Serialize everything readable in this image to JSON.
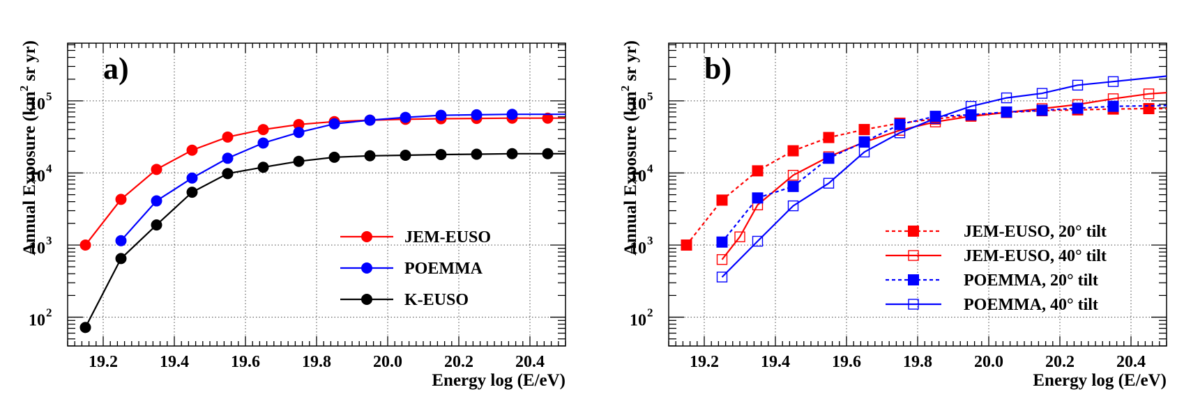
{
  "chart_data": [
    {
      "id": "a",
      "type": "line",
      "panel_label": "a)",
      "xlabel": "Energy log (E/eV)",
      "ylabel_main": "Annual Exposure (km",
      "ylabel_sup": "2",
      "ylabel_tail": " sr yr)",
      "xlim": [
        19.1,
        20.5
      ],
      "ylim_log10": [
        1.6,
        5.8
      ],
      "yscale": "log",
      "grid": true,
      "legend_position": "lower-right",
      "xticks": [
        19.2,
        19.4,
        19.6,
        19.8,
        20.0,
        20.2,
        20.4
      ],
      "xtick_labels": [
        "19.2",
        "19.4",
        "19.6",
        "19.8",
        "20.0",
        "20.2",
        "20.4"
      ],
      "yticks": [
        {
          "base": "10",
          "exp": "2",
          "log10": 2
        },
        {
          "base": "10",
          "exp": "3",
          "log10": 3
        },
        {
          "base": "10",
          "exp": "4",
          "log10": 4
        },
        {
          "base": "10",
          "exp": "5",
          "log10": 5
        }
      ],
      "series": [
        {
          "name": "JEM-EUSO",
          "color": "#ff0000",
          "marker": "circle",
          "dash": "solid",
          "points": [
            [
              19.15,
              1000
            ],
            [
              19.25,
              4300
            ],
            [
              19.35,
              11200
            ],
            [
              19.45,
              20700
            ],
            [
              19.55,
              31500
            ],
            [
              19.65,
              40000
            ],
            [
              19.75,
              47000
            ],
            [
              19.85,
              51500
            ],
            [
              19.95,
              54000
            ],
            [
              20.05,
              55500
            ],
            [
              20.15,
              56500
            ],
            [
              20.25,
              57000
            ],
            [
              20.35,
              57500
            ],
            [
              20.45,
              57500
            ]
          ],
          "line_to": [
            20.5,
            57500
          ]
        },
        {
          "name": "POEMMA",
          "color": "#0000ff",
          "marker": "circle",
          "dash": "solid",
          "points": [
            [
              19.25,
              1150
            ],
            [
              19.35,
              4100
            ],
            [
              19.45,
              8500
            ],
            [
              19.55,
              16000
            ],
            [
              19.65,
              26000
            ],
            [
              19.75,
              36500
            ],
            [
              19.85,
              48000
            ],
            [
              19.95,
              54000
            ],
            [
              20.05,
              59000
            ],
            [
              20.15,
              63000
            ],
            [
              20.25,
              64000
            ],
            [
              20.35,
              65000
            ]
          ],
          "line_to": [
            20.5,
            65000
          ]
        },
        {
          "name": "K-EUSO",
          "color": "#000000",
          "marker": "circle",
          "dash": "solid",
          "points": [
            [
              19.15,
              72
            ],
            [
              19.25,
              650
            ],
            [
              19.35,
              1900
            ],
            [
              19.45,
              5400
            ],
            [
              19.55,
              9800
            ],
            [
              19.65,
              12000
            ],
            [
              19.75,
              14500
            ],
            [
              19.85,
              16500
            ],
            [
              19.95,
              17300
            ],
            [
              20.05,
              17600
            ],
            [
              20.15,
              18000
            ],
            [
              20.25,
              18200
            ],
            [
              20.35,
              18500
            ],
            [
              20.45,
              18500
            ]
          ],
          "line_to": [
            20.5,
            18500
          ]
        }
      ]
    },
    {
      "id": "b",
      "type": "line",
      "panel_label": "b)",
      "xlabel": "Energy log (E/eV)",
      "ylabel_main": "Annual Exposure (km",
      "ylabel_sup": "2",
      "ylabel_tail": " sr yr)",
      "xlim": [
        19.1,
        20.5
      ],
      "ylim_log10": [
        1.6,
        5.8
      ],
      "yscale": "log",
      "grid": true,
      "legend_position": "lower-right",
      "xticks": [
        19.2,
        19.4,
        19.6,
        19.8,
        20.0,
        20.2,
        20.4
      ],
      "xtick_labels": [
        "19.2",
        "19.4",
        "19.6",
        "19.8",
        "20.0",
        "20.2",
        "20.4"
      ],
      "yticks": [
        {
          "base": "10",
          "exp": "2",
          "log10": 2
        },
        {
          "base": "10",
          "exp": "3",
          "log10": 3
        },
        {
          "base": "10",
          "exp": "4",
          "log10": 4
        },
        {
          "base": "10",
          "exp": "5",
          "log10": 5
        }
      ],
      "series": [
        {
          "name": "JEM-EUSO, 20° tilt",
          "color": "#ff0000",
          "marker": "square-filled",
          "dash": "dotted",
          "points": [
            [
              19.15,
              1000
            ],
            [
              19.25,
              4200
            ],
            [
              19.35,
              10700
            ],
            [
              19.45,
              20300
            ],
            [
              19.55,
              31000
            ],
            [
              19.65,
              40000
            ],
            [
              19.75,
              49000
            ],
            [
              19.85,
              56000
            ],
            [
              19.95,
              63000
            ],
            [
              20.05,
              69000
            ],
            [
              20.15,
              73000
            ],
            [
              20.25,
              75000
            ],
            [
              20.35,
              77000
            ],
            [
              20.45,
              78000
            ]
          ],
          "line_to": [
            20.5,
            78000
          ]
        },
        {
          "name": "JEM-EUSO, 40° tilt",
          "color": "#ff0000",
          "marker": "square-open",
          "dash": "solid",
          "points": [
            [
              19.25,
              630
            ],
            [
              19.3,
              1300
            ],
            [
              19.35,
              3600
            ],
            [
              19.45,
              9300
            ],
            [
              19.55,
              16800
            ],
            [
              19.65,
              26800
            ],
            [
              19.75,
              39000
            ],
            [
              19.85,
              51000
            ],
            [
              19.95,
              61000
            ],
            [
              20.05,
              69000
            ],
            [
              20.15,
              78000
            ],
            [
              20.25,
              89000
            ],
            [
              20.35,
              107000
            ],
            [
              20.45,
              125000
            ]
          ],
          "line_to": [
            20.5,
            130000
          ]
        },
        {
          "name": "POEMMA, 20° tilt",
          "color": "#0000ff",
          "marker": "square-filled",
          "dash": "dotted",
          "points": [
            [
              19.25,
              1100
            ],
            [
              19.35,
              4500
            ],
            [
              19.45,
              6500
            ],
            [
              19.55,
              16000
            ],
            [
              19.65,
              27000
            ],
            [
              19.75,
              47000
            ],
            [
              19.85,
              61000
            ],
            [
              19.95,
              64000
            ],
            [
              20.05,
              70000
            ],
            [
              20.15,
              74000
            ],
            [
              20.25,
              79000
            ],
            [
              20.35,
              84000
            ]
          ],
          "line_to": [
            20.5,
            86000
          ]
        },
        {
          "name": "POEMMA, 40° tilt",
          "color": "#0000ff",
          "marker": "square-open",
          "dash": "solid",
          "points": [
            [
              19.25,
              360
            ],
            [
              19.35,
              1130
            ],
            [
              19.45,
              3500
            ],
            [
              19.55,
              7200
            ],
            [
              19.65,
              19500
            ],
            [
              19.75,
              36000
            ],
            [
              19.85,
              57000
            ],
            [
              19.95,
              84000
            ],
            [
              20.05,
              110000
            ],
            [
              20.15,
              127000
            ],
            [
              20.25,
              165000
            ],
            [
              20.35,
              185000
            ]
          ],
          "line_to": [
            20.5,
            220000
          ]
        }
      ]
    }
  ]
}
